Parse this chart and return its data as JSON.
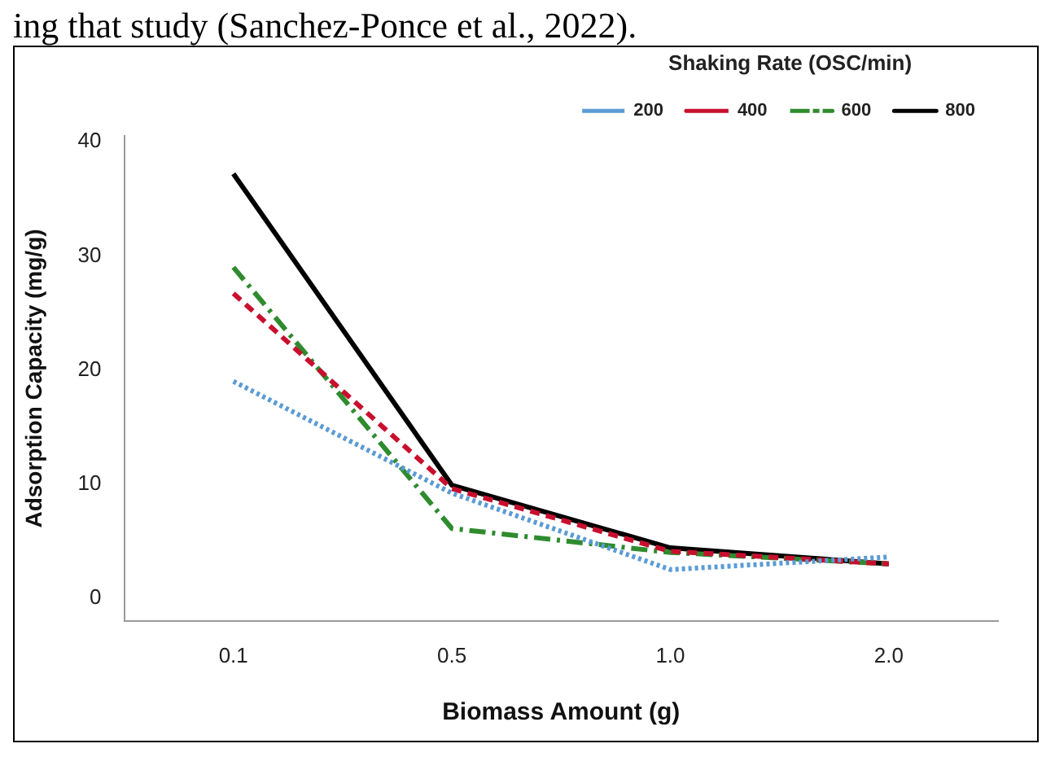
{
  "chart_data": {
    "type": "line",
    "xlabel": "Biomass Amount (g)",
    "ylabel": "Adsorption Capacity (mg/g)",
    "legend_title": "Shaking Rate (OSC/min)",
    "annotations": [
      "ing that study (Sanchez-Ponce et al., 2022)."
    ],
    "categories": [
      "0.1",
      "0.5",
      "1.0",
      "2.0"
    ],
    "series": [
      {
        "name": "200",
        "color": "#5b9bd5",
        "line_style": "dotted",
        "values": [
          19.0,
          9.2,
          2.5,
          3.6
        ]
      },
      {
        "name": "400",
        "color": "#c8102e",
        "line_style": "dashed",
        "values": [
          26.7,
          9.6,
          4.1,
          3.0
        ]
      },
      {
        "name": "600",
        "color": "#2e8b2e",
        "line_style": "dashdot",
        "values": [
          29.0,
          6.1,
          4.0,
          3.0
        ]
      },
      {
        "name": "800",
        "color": "#000000",
        "line_style": "solid",
        "values": [
          37.2,
          9.9,
          4.4,
          3.0
        ]
      }
    ],
    "ylim": [
      -2,
      40.5
    ],
    "yticks": [
      0,
      10,
      20,
      30,
      40
    ],
    "grid": false,
    "legend": "top right",
    "marker": "none"
  }
}
